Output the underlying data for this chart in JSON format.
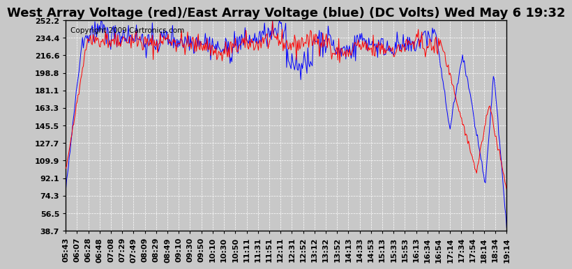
{
  "title": "West Array Voltage (red)/East Array Voltage (blue) (DC Volts) Wed May 6 19:32",
  "copyright": "Copyright 2009 Cartronics.com",
  "ylabel_ticks": [
    252.2,
    234.4,
    216.6,
    198.8,
    181.1,
    163.3,
    145.5,
    127.7,
    109.9,
    92.1,
    74.3,
    56.5,
    38.7
  ],
  "ylim": [
    38.7,
    252.2
  ],
  "x_labels": [
    "05:43",
    "06:07",
    "06:28",
    "06:48",
    "07:08",
    "07:29",
    "07:49",
    "08:09",
    "08:29",
    "08:49",
    "09:10",
    "09:30",
    "09:50",
    "10:10",
    "10:30",
    "10:50",
    "11:11",
    "11:31",
    "11:51",
    "12:11",
    "12:31",
    "12:52",
    "13:12",
    "13:32",
    "13:52",
    "14:13",
    "14:33",
    "14:53",
    "15:13",
    "15:33",
    "15:53",
    "16:13",
    "16:34",
    "16:54",
    "17:14",
    "17:34",
    "17:54",
    "18:14",
    "18:34",
    "19:14"
  ],
  "background_color": "#c8c8c8",
  "plot_background": "#c8c8c8",
  "grid_color": "#ffffff",
  "red_color": "#ff0000",
  "blue_color": "#0000ff",
  "title_fontsize": 13,
  "copyright_fontsize": 7.5,
  "tick_fontsize": 8,
  "seed": 42
}
